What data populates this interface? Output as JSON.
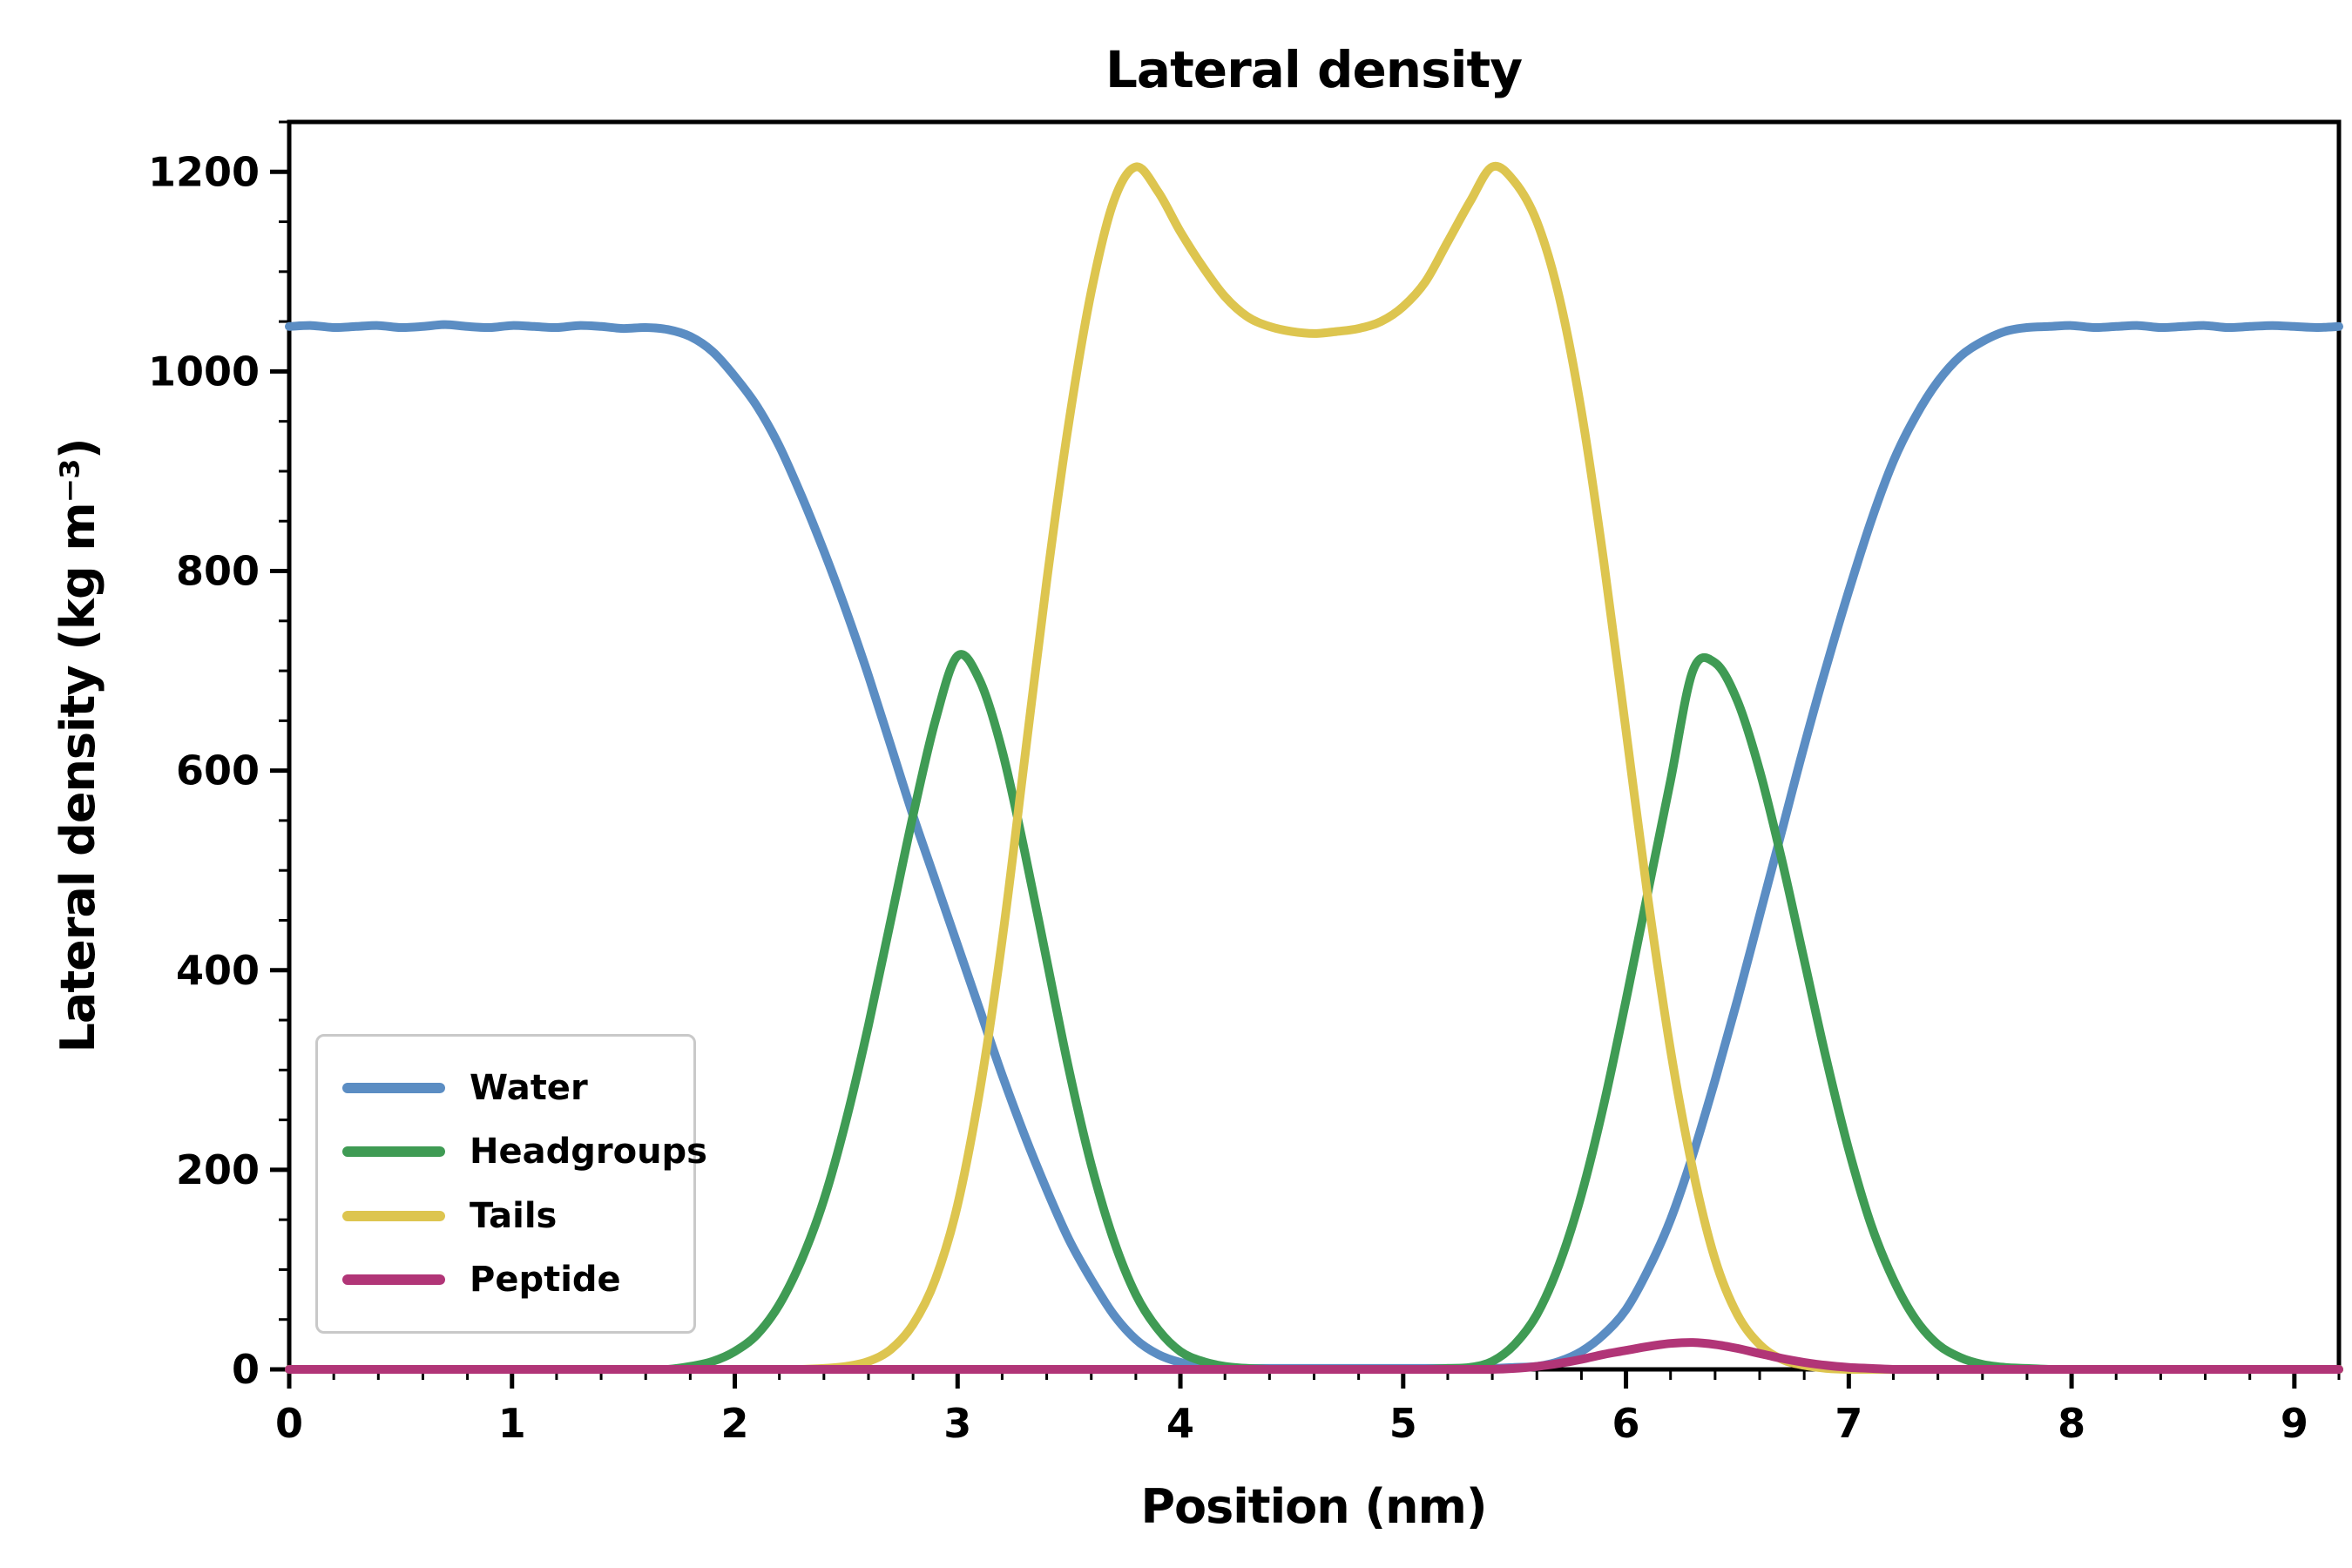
{
  "chart_data": {
    "type": "line",
    "title": "Lateral density",
    "xlabel": "Position (nm)",
    "ylabel": "Lateral density (kg m⁻³)",
    "xlim": [
      0,
      9.2
    ],
    "ylim": [
      0,
      1250
    ],
    "x_ticks": [
      0,
      1,
      2,
      3,
      4,
      5,
      6,
      7,
      8,
      9
    ],
    "y_ticks": [
      0,
      200,
      400,
      600,
      800,
      1000,
      1200
    ],
    "x_minor_step": 0.2,
    "y_minor_step": 50,
    "grid": false,
    "legend_position": "lower left",
    "axis_color": "#000000",
    "legend_border_color": "#c9c9c9",
    "x": [
      0,
      0.1,
      0.2,
      0.3,
      0.4,
      0.5,
      0.6,
      0.7,
      0.8,
      0.9,
      1,
      1.1,
      1.2,
      1.3,
      1.4,
      1.5,
      1.6,
      1.7,
      1.8,
      1.9,
      2,
      2.1,
      2.2,
      2.3,
      2.4,
      2.5,
      2.6,
      2.7,
      2.8,
      2.9,
      3,
      3.1,
      3.2,
      3.3,
      3.4,
      3.5,
      3.6,
      3.7,
      3.8,
      3.9,
      4,
      4.1,
      4.2,
      4.3,
      4.4,
      4.5,
      4.6,
      4.7,
      4.8,
      4.9,
      5,
      5.1,
      5.2,
      5.3,
      5.4,
      5.5,
      5.6,
      5.7,
      5.8,
      5.9,
      6,
      6.1,
      6.2,
      6.3,
      6.4,
      6.5,
      6.6,
      6.7,
      6.8,
      6.9,
      7,
      7.1,
      7.2,
      7.3,
      7.4,
      7.5,
      7.6,
      7.7,
      7.8,
      7.9,
      8,
      8.1,
      8.2,
      8.3,
      8.4,
      8.5,
      8.6,
      8.7,
      8.8,
      8.9,
      9,
      9.1,
      9.2
    ],
    "series": [
      {
        "name": "Water",
        "color": "#5b8dc3",
        "values": [
          1045,
          1046,
          1044,
          1045,
          1046,
          1044,
          1045,
          1047,
          1045,
          1044,
          1046,
          1045,
          1044,
          1046,
          1045,
          1043,
          1044,
          1042,
          1035,
          1020,
          995,
          965,
          925,
          875,
          820,
          760,
          695,
          625,
          555,
          490,
          425,
          360,
          295,
          235,
          180,
          130,
          90,
          55,
          30,
          15,
          7,
          3,
          2,
          1,
          1,
          1,
          1,
          1,
          1,
          1,
          1,
          1,
          1,
          1,
          1,
          2,
          3,
          8,
          18,
          35,
          60,
          100,
          150,
          215,
          290,
          370,
          455,
          540,
          625,
          705,
          780,
          850,
          910,
          955,
          990,
          1015,
          1030,
          1040,
          1044,
          1045,
          1046,
          1044,
          1045,
          1046,
          1044,
          1045,
          1046,
          1044,
          1045,
          1046,
          1045,
          1044,
          1045
        ]
      },
      {
        "name": "Headgroups",
        "color": "#3f9b54",
        "values": [
          0,
          0,
          0,
          0,
          0,
          0,
          0,
          0,
          0,
          0,
          0,
          0,
          0,
          0,
          0,
          0,
          0,
          0,
          3,
          8,
          18,
          35,
          65,
          110,
          170,
          250,
          345,
          450,
          555,
          650,
          715,
          690,
          620,
          520,
          410,
          300,
          205,
          130,
          75,
          40,
          18,
          8,
          3,
          1,
          0,
          0,
          0,
          0,
          0,
          0,
          0,
          0,
          1,
          2,
          8,
          25,
          55,
          105,
          175,
          265,
          370,
          480,
          590,
          700,
          708,
          670,
          600,
          510,
          410,
          310,
          220,
          145,
          90,
          50,
          25,
          12,
          5,
          2,
          1,
          0,
          0,
          0,
          0,
          0,
          0,
          0,
          0,
          0,
          0,
          0,
          0,
          0,
          0
        ]
      },
      {
        "name": "Tails",
        "color": "#ddc54f",
        "values": [
          0,
          0,
          0,
          0,
          0,
          0,
          0,
          0,
          0,
          0,
          0,
          0,
          0,
          0,
          0,
          0,
          0,
          0,
          0,
          0,
          0,
          0,
          0,
          0,
          1,
          3,
          8,
          20,
          45,
          90,
          165,
          280,
          430,
          610,
          790,
          950,
          1080,
          1170,
          1205,
          1180,
          1140,
          1105,
          1075,
          1055,
          1045,
          1040,
          1038,
          1040,
          1043,
          1050,
          1065,
          1090,
          1130,
          1170,
          1205,
          1190,
          1150,
          1075,
          960,
          810,
          640,
          470,
          320,
          200,
          110,
          55,
          25,
          10,
          4,
          1,
          0,
          0,
          0,
          0,
          0,
          0,
          0,
          0,
          0,
          0,
          0,
          0,
          0,
          0,
          0,
          0,
          0,
          0,
          0,
          0,
          0,
          0,
          0
        ]
      },
      {
        "name": "Peptide",
        "color": "#b13577",
        "values": [
          0,
          0,
          0,
          0,
          0,
          0,
          0,
          0,
          0,
          0,
          0,
          0,
          0,
          0,
          0,
          0,
          0,
          0,
          0,
          0,
          0,
          0,
          0,
          0,
          0,
          0,
          0,
          0,
          0,
          0,
          0,
          0,
          0,
          0,
          0,
          0,
          0,
          0,
          0,
          0,
          0,
          0,
          0,
          0,
          0,
          0,
          0,
          0,
          0,
          0,
          0,
          0,
          0,
          0,
          0,
          1,
          3,
          6,
          10,
          15,
          19,
          23,
          26,
          27,
          25,
          21,
          16,
          11,
          7,
          4,
          2,
          1,
          0,
          0,
          0,
          0,
          0,
          0,
          0,
          0,
          0,
          0,
          0,
          0,
          0,
          0,
          0,
          0,
          0,
          0,
          0,
          0,
          0
        ]
      }
    ]
  }
}
